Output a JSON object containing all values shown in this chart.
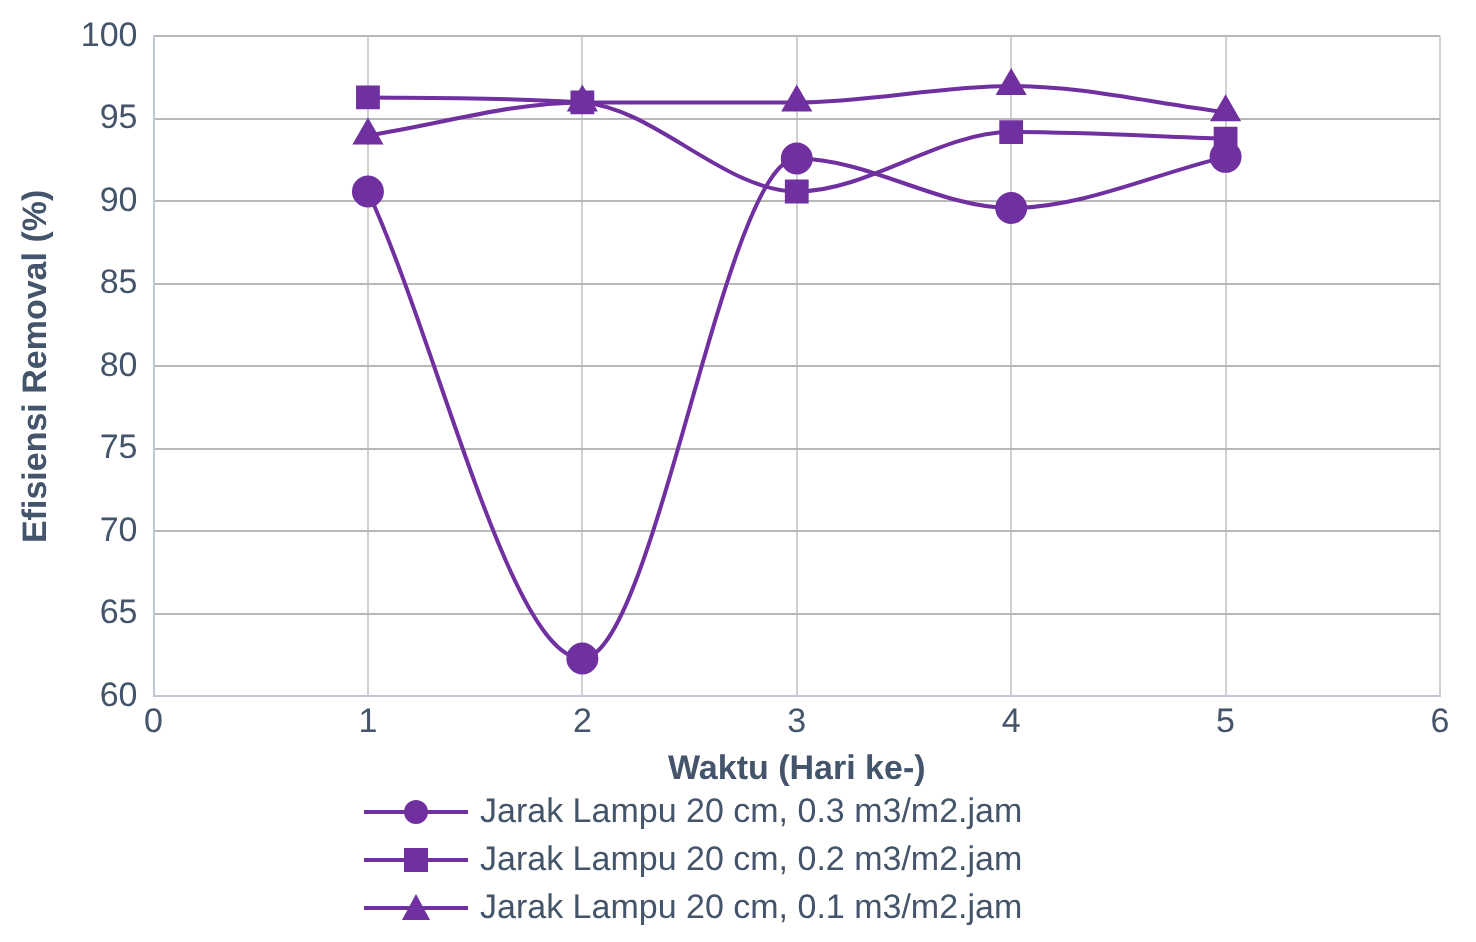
{
  "chart_data": {
    "type": "line",
    "xlabel": "Waktu (Hari ke-)",
    "ylabel": "Efisiensi Removal (%)",
    "x": [
      1,
      2,
      3,
      4,
      5
    ],
    "xlim": [
      0,
      6
    ],
    "xticks": [
      0,
      1,
      2,
      3,
      4,
      5,
      6
    ],
    "ylim": [
      60,
      100
    ],
    "yticks": [
      60,
      65,
      70,
      75,
      80,
      85,
      90,
      95,
      100
    ],
    "grid": true,
    "legend": "bottom",
    "series": [
      {
        "name": "Jarak Lampu 20 cm, 0.3 m3/m2.jam",
        "color": "#7030a0",
        "marker": "circle",
        "values": [
          90.6,
          62.3,
          92.6,
          89.6,
          92.7
        ]
      },
      {
        "name": "Jarak Lampu 20 cm, 0.2 m3/m2.jam",
        "color": "#7030a0",
        "marker": "square",
        "values": [
          96.3,
          96.0,
          90.6,
          94.2,
          93.8
        ]
      },
      {
        "name": "Jarak Lampu 20 cm, 0.1 m3/m2.jam",
        "color": "#7030a0",
        "marker": "triangle",
        "values": [
          94.0,
          96.0,
          96.0,
          97.0,
          95.4
        ]
      }
    ]
  }
}
